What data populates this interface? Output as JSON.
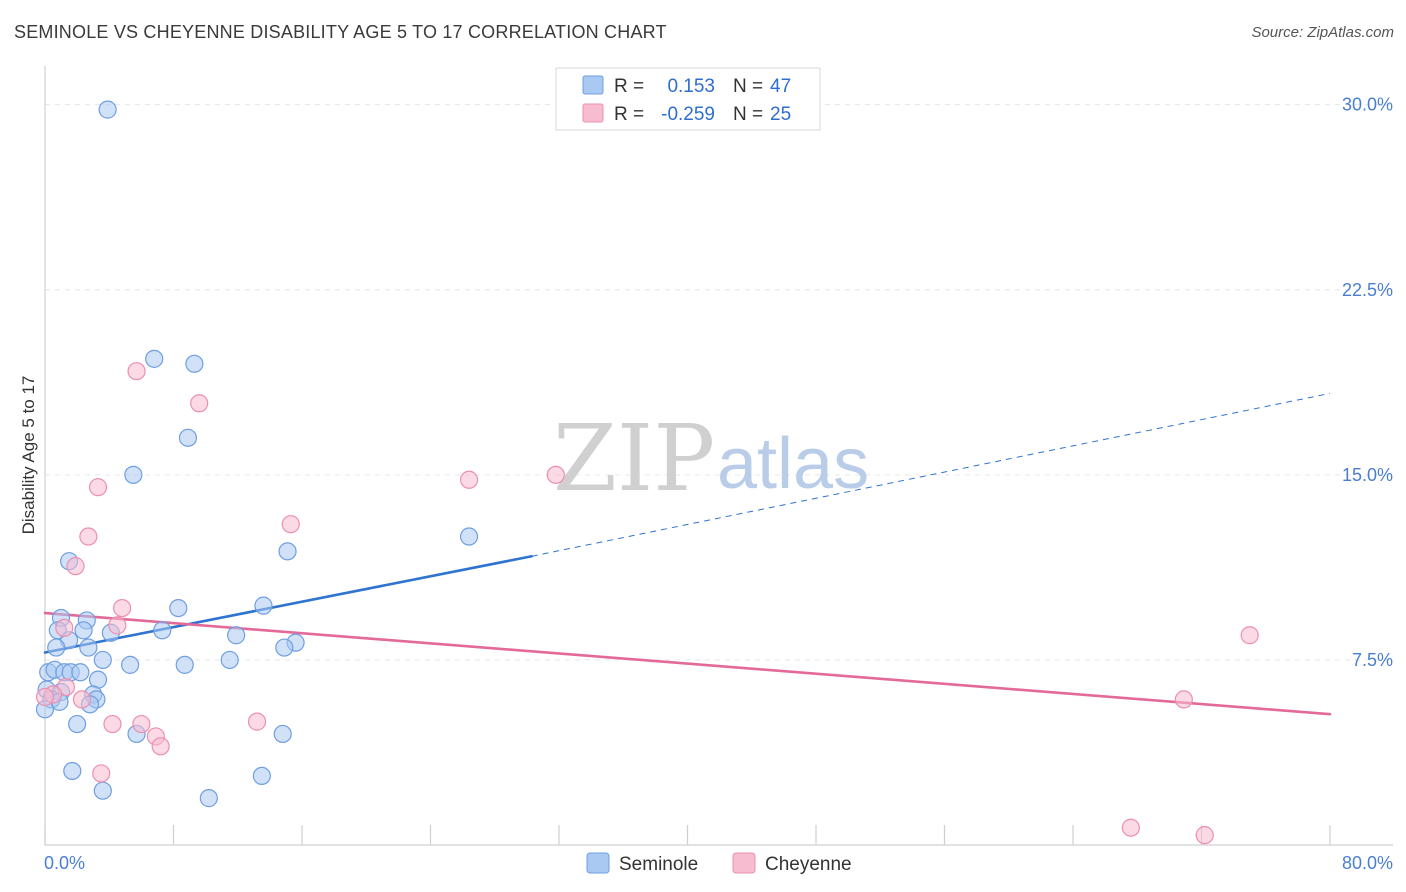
{
  "header": {
    "title": "SEMINOLE VS CHEYENNE DISABILITY AGE 5 TO 17 CORRELATION CHART",
    "source": "Source: ZipAtlas.com"
  },
  "watermark": {
    "zip": "ZIP",
    "atlas": "atlas"
  },
  "legend": {
    "r_label": "R =",
    "n_label": "N =",
    "rows": [
      {
        "series": "Seminole",
        "r": "0.153",
        "n": "47"
      },
      {
        "series": "Cheyenne",
        "r": "-0.259",
        "n": "25"
      }
    ]
  },
  "colors": {
    "seminole_fill": "#a9c9f2",
    "seminole_stroke": "#6f9fe0",
    "seminole_line": "#2f74d0",
    "cheyenne_fill": "#f7bcd0",
    "cheyenne_stroke": "#ec8fb0",
    "cheyenne_line": "#e36a98",
    "grid": "#e6e6e6",
    "axis_label": "#4a7fd0"
  },
  "chart_data": {
    "type": "scatter",
    "title": "SEMINOLE VS CHEYENNE DISABILITY AGE 5 TO 17 CORRELATION CHART",
    "xlabel": "",
    "ylabel": "Disability Age 5 to 17",
    "xlim": [
      0,
      80
    ],
    "ylim": [
      0,
      31
    ],
    "x_tick_labels": [
      "0.0%",
      "80.0%"
    ],
    "y_ticks": [
      7.5,
      15.0,
      22.5,
      30.0
    ],
    "y_tick_labels": [
      "7.5%",
      "15.0%",
      "22.5%",
      "30.0%"
    ],
    "grid": true,
    "legend_position": "top-center",
    "series": [
      {
        "name": "Seminole",
        "points": [
          [
            3.9,
            29.8
          ],
          [
            6.8,
            19.7
          ],
          [
            9.3,
            19.5
          ],
          [
            8.9,
            16.5
          ],
          [
            5.5,
            15.0
          ],
          [
            26.4,
            12.5
          ],
          [
            1.5,
            11.5
          ],
          [
            15.1,
            11.9
          ],
          [
            8.3,
            9.6
          ],
          [
            13.6,
            9.7
          ],
          [
            1.0,
            9.2
          ],
          [
            2.6,
            9.1
          ],
          [
            0.8,
            8.7
          ],
          [
            2.4,
            8.7
          ],
          [
            4.1,
            8.6
          ],
          [
            7.3,
            8.7
          ],
          [
            11.9,
            8.5
          ],
          [
            1.5,
            8.3
          ],
          [
            0.7,
            8.0
          ],
          [
            2.7,
            8.0
          ],
          [
            15.6,
            8.2
          ],
          [
            14.9,
            8.0
          ],
          [
            3.6,
            7.5
          ],
          [
            5.3,
            7.3
          ],
          [
            8.7,
            7.3
          ],
          [
            11.5,
            7.5
          ],
          [
            0.2,
            7.0
          ],
          [
            0.6,
            7.1
          ],
          [
            1.2,
            7.0
          ],
          [
            1.6,
            7.0
          ],
          [
            2.2,
            7.0
          ],
          [
            3.3,
            6.7
          ],
          [
            0.1,
            6.3
          ],
          [
            1.0,
            6.2
          ],
          [
            3.0,
            6.1
          ],
          [
            0.4,
            5.9
          ],
          [
            0.9,
            5.8
          ],
          [
            3.2,
            5.9
          ],
          [
            2.8,
            5.7
          ],
          [
            0.0,
            5.5
          ],
          [
            2.0,
            4.9
          ],
          [
            5.7,
            4.5
          ],
          [
            14.8,
            4.5
          ],
          [
            1.7,
            3.0
          ],
          [
            3.6,
            2.2
          ],
          [
            13.5,
            2.8
          ],
          [
            10.2,
            1.9
          ]
        ]
      },
      {
        "name": "Cheyenne",
        "points": [
          [
            5.7,
            19.2
          ],
          [
            9.6,
            17.9
          ],
          [
            3.3,
            14.5
          ],
          [
            26.4,
            14.8
          ],
          [
            31.8,
            15.0
          ],
          [
            15.3,
            13.0
          ],
          [
            2.7,
            12.5
          ],
          [
            1.9,
            11.3
          ],
          [
            4.8,
            9.6
          ],
          [
            4.5,
            8.9
          ],
          [
            1.2,
            8.8
          ],
          [
            75.0,
            8.5
          ],
          [
            1.3,
            6.4
          ],
          [
            0.5,
            6.1
          ],
          [
            2.3,
            5.9
          ],
          [
            70.9,
            5.9
          ],
          [
            4.2,
            4.9
          ],
          [
            6.0,
            4.9
          ],
          [
            13.2,
            5.0
          ],
          [
            6.9,
            4.4
          ],
          [
            7.2,
            4.0
          ],
          [
            3.5,
            2.9
          ],
          [
            67.6,
            0.7
          ],
          [
            72.2,
            0.4
          ],
          [
            0.0,
            6.0
          ]
        ]
      }
    ],
    "trend_lines": [
      {
        "series": "Seminole",
        "x1": 0,
        "y1": 7.8,
        "x2": 30.3,
        "y2": 11.7,
        "extended_to_x": 80,
        "extended_y": 18.3
      },
      {
        "series": "Cheyenne",
        "x1": 0,
        "y1": 9.4,
        "x2": 80,
        "y2": 5.3
      }
    ]
  }
}
